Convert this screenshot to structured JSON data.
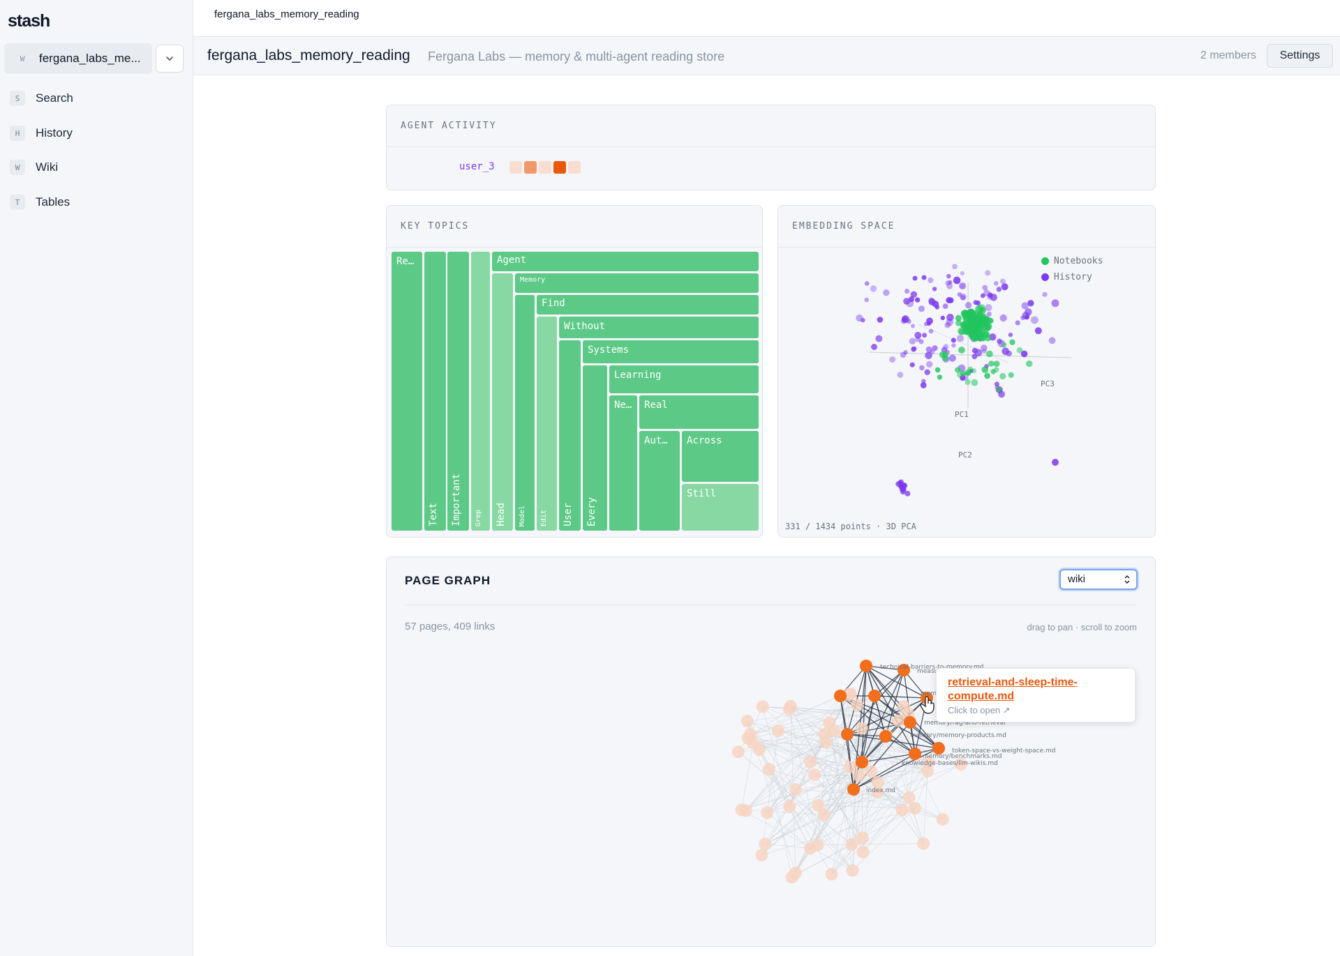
{
  "app": {
    "logo": "stash"
  },
  "sidebar": {
    "workspace": {
      "badge": "W",
      "name": "fergana_labs_me..."
    },
    "items": [
      {
        "key": "S",
        "label": "Search"
      },
      {
        "key": "H",
        "label": "History"
      },
      {
        "key": "W",
        "label": "Wiki"
      },
      {
        "key": "T",
        "label": "Tables"
      }
    ]
  },
  "topbar": {
    "breadcrumb": "fergana_labs_memory_reading"
  },
  "header": {
    "title": "fergana_labs_memory_reading",
    "subtitle": "Fergana Labs — memory & multi-agent reading store",
    "members": "2 members",
    "settings_label": "Settings"
  },
  "agent_activity": {
    "title": "AGENT ACTIVITY",
    "agent": "user_3",
    "activity_levels": [
      1,
      3,
      1,
      4,
      1
    ],
    "colors": {
      "0": "#f7efe9",
      "1": "#f8ddd0",
      "2": "#f4b996",
      "3": "#f19a68",
      "4": "#ea580c"
    }
  },
  "key_topics": {
    "title": "KEY TOPICS",
    "colors": {
      "primary": "#5cc986",
      "light": "#88d8a4"
    },
    "cells": [
      {
        "label": "Re…",
        "orient": "h",
        "shade": "primary"
      },
      {
        "label": "Text",
        "orient": "v",
        "shade": "primary"
      },
      {
        "label": "Important",
        "orient": "v",
        "shade": "primary"
      },
      {
        "label": "Grep",
        "orient": "v",
        "shade": "light"
      },
      {
        "label": "Agent",
        "orient": "h",
        "shade": "primary"
      },
      {
        "label": "Head",
        "orient": "v",
        "shade": "light"
      },
      {
        "label": "Memory",
        "orient": "h",
        "shade": "primary"
      },
      {
        "label": "Model",
        "orient": "v",
        "shade": "primary"
      },
      {
        "label": "Find",
        "orient": "h",
        "shade": "primary"
      },
      {
        "label": "Edit",
        "orient": "v",
        "shade": "light"
      },
      {
        "label": "Without",
        "orient": "h",
        "shade": "primary"
      },
      {
        "label": "User",
        "orient": "v",
        "shade": "primary"
      },
      {
        "label": "Systems",
        "orient": "h",
        "shade": "primary"
      },
      {
        "label": "Every",
        "orient": "v",
        "shade": "primary"
      },
      {
        "label": "Learning",
        "orient": "h",
        "shade": "primary"
      },
      {
        "label": "Ne…",
        "orient": "h",
        "shade": "primary"
      },
      {
        "label": "Real",
        "orient": "h",
        "shade": "primary"
      },
      {
        "label": "Aut…",
        "orient": "h",
        "shade": "primary"
      },
      {
        "label": "Across",
        "orient": "h",
        "shade": "primary"
      },
      {
        "label": "Still",
        "orient": "h",
        "shade": "light"
      }
    ]
  },
  "embedding": {
    "title": "EMBEDDING SPACE",
    "legend": [
      {
        "name": "Notebooks",
        "color": "#22c55e"
      },
      {
        "name": "History",
        "color": "#7c3aed"
      }
    ],
    "axes": [
      "PC1",
      "PC2",
      "PC3"
    ],
    "footer": "331 / 1434 points · 3D PCA"
  },
  "page_graph": {
    "title": "PAGE GRAPH",
    "select_value": "wiki",
    "summary": "57 pages, 409 links",
    "hint": "drag to pan · scroll to zoom",
    "colors": {
      "highlight": "#f26d1c",
      "faded": "#f7d3bf"
    },
    "node_labels": [
      "technical-barriers-to-memory.md",
      "measu",
      "memory.md",
      "memory/rag-and-retrieval",
      "memory/memory-products.md",
      "token-space-vs-weight-space.md",
      "memory/benchmarks.md",
      "knowledge-bases/llm-wikis.md",
      "index.md"
    ],
    "tooltip": {
      "link": "retrieval-and-sleep-time-compute.md",
      "hint": "Click to open ↗"
    }
  }
}
